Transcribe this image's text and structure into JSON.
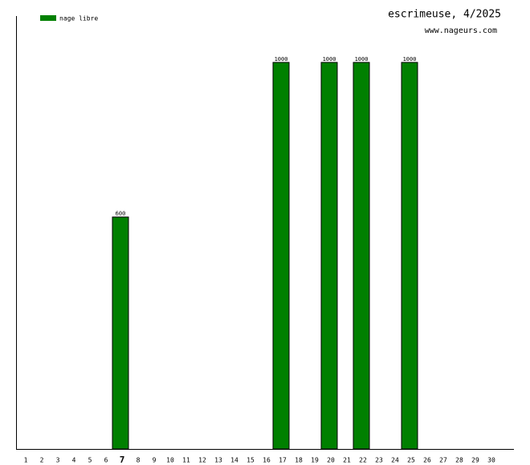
{
  "chart_data": {
    "type": "bar",
    "title": "escrimeuse, 4/2025",
    "subtitle": "www.nageurs.com",
    "categories": [
      "1",
      "2",
      "3",
      "4",
      "5",
      "6",
      "7",
      "8",
      "9",
      "10",
      "11",
      "12",
      "13",
      "14",
      "15",
      "16",
      "17",
      "18",
      "19",
      "20",
      "21",
      "22",
      "23",
      "24",
      "25",
      "26",
      "27",
      "28",
      "29",
      "30"
    ],
    "series": [
      {
        "name": "nage libre",
        "color": "#008000",
        "values": [
          0,
          0,
          0,
          0,
          0,
          0,
          600,
          0,
          0,
          0,
          0,
          0,
          0,
          0,
          0,
          0,
          1000,
          0,
          0,
          1000,
          0,
          1000,
          0,
          0,
          1000,
          0,
          0,
          0,
          0,
          0
        ]
      }
    ],
    "ylim": [
      0,
      1120
    ],
    "highlight": "7",
    "legend": "top-left"
  }
}
